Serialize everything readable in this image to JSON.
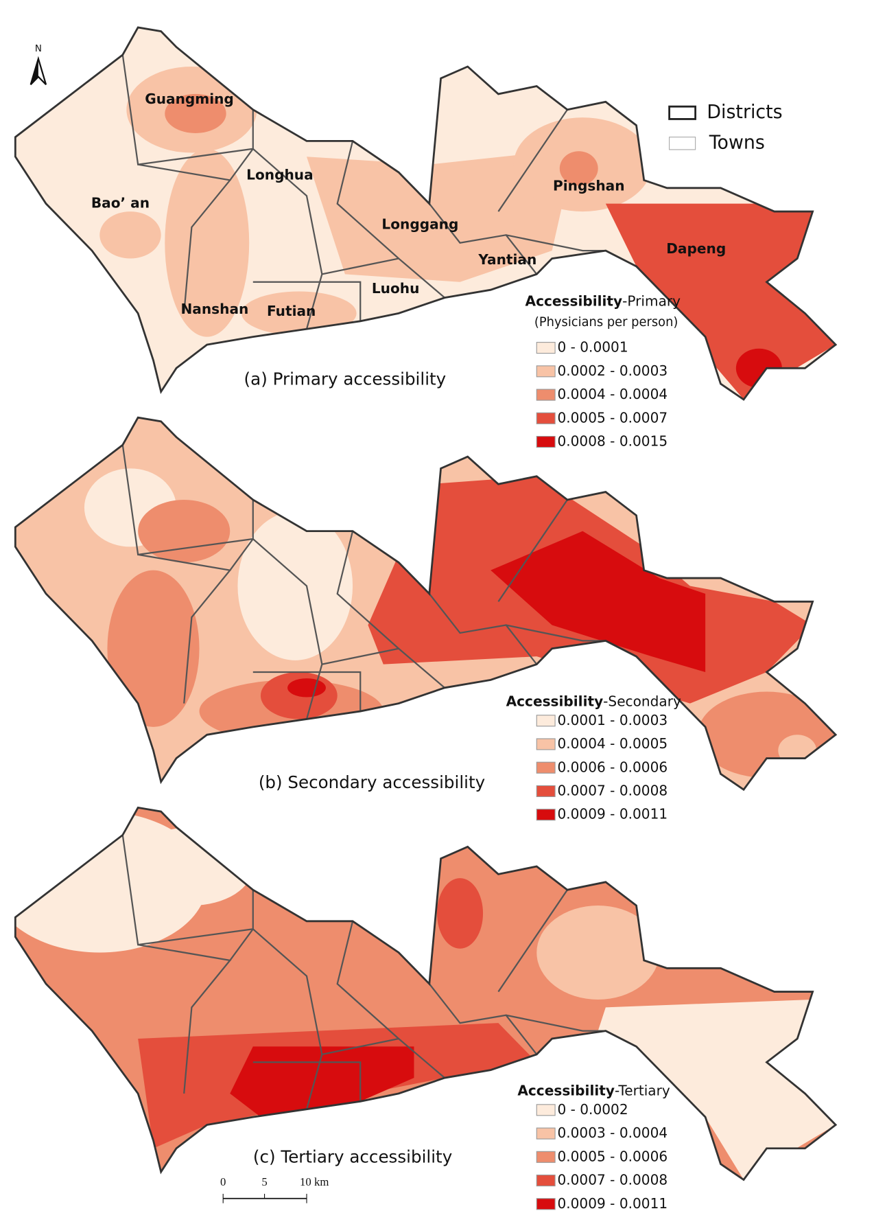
{
  "north": "N",
  "legend": {
    "districts": "Districts",
    "towns": "Towns"
  },
  "district_labels": [
    "Guangming",
    "Longhua",
    "Bao’ an",
    "Longgang",
    "Pingshan",
    "Dapeng",
    "Yantian",
    "Luohu",
    "Nanshan",
    "Futian"
  ],
  "class_colors": [
    "#fdebdc",
    "#f8c3a6",
    "#ee8d6d",
    "#e44e3c",
    "#d70c0e"
  ],
  "panels": [
    {
      "caption": "(a) Primary accessibility",
      "legend_title": "Accessibility",
      "legend_title_suffix": "-Primary",
      "legend_subtitle": "(Physicians per person)",
      "classes": [
        "0 - 0.0001",
        "0.0002 - 0.0003",
        "0.0004 - 0.0004",
        "0.0005 - 0.0007",
        "0.0008 - 0.0015"
      ]
    },
    {
      "caption": "(b) Secondary accessibility",
      "legend_title": "Accessibility",
      "legend_title_suffix": "-Secondary",
      "classes": [
        "0.0001 - 0.0003",
        "0.0004 - 0.0005",
        "0.0006 - 0.0006",
        "0.0007 - 0.0008",
        "0.0009 - 0.0011"
      ]
    },
    {
      "caption": "(c) Tertiary accessibility",
      "legend_title": "Accessibility",
      "legend_title_suffix": "-Tertiary",
      "classes": [
        "0 - 0.0002",
        "0.0003 - 0.0004",
        "0.0005 - 0.0006",
        "0.0007 - 0.0008",
        "0.0009 - 0.0011"
      ]
    }
  ],
  "scale_bar": {
    "labels": [
      "0",
      "5",
      "10 km"
    ]
  }
}
